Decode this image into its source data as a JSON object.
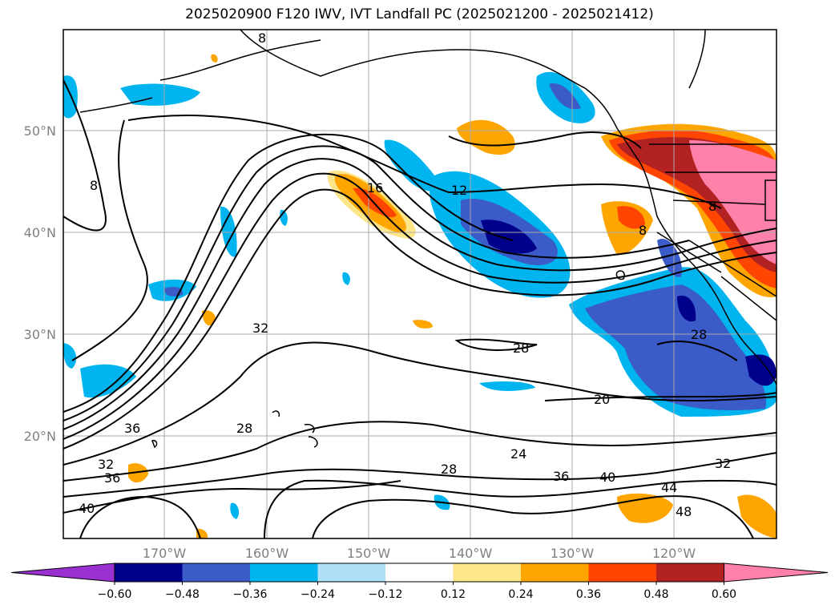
{
  "title": "2025020900 F120 IWV, IVT Landfall PC (2025021200 - 2025021412)",
  "map": {
    "lat_labels": [
      "50°N",
      "40°N",
      "30°N",
      "20°N"
    ],
    "lon_labels": [
      "170°W",
      "160°W",
      "150°W",
      "140°W",
      "130°W",
      "120°W"
    ]
  },
  "contour_labels": [
    "8",
    "8",
    "12",
    "16",
    "28",
    "28",
    "28",
    "32",
    "32",
    "32",
    "36",
    "36",
    "36",
    "40",
    "40",
    "44",
    "48",
    "24",
    "20",
    "28",
    "8",
    "8"
  ],
  "colorbar": {
    "ticks": [
      "−0.60",
      "−0.48",
      "−0.36",
      "−0.24",
      "−0.12",
      "0.12",
      "0.24",
      "0.36",
      "0.48",
      "0.60"
    ],
    "colors": [
      "#9b30d0",
      "#00008b",
      "#3a5bc8",
      "#00b4f0",
      "#b0e0f8",
      "#ffffff",
      "#fde68a",
      "#ffa500",
      "#ff4500",
      "#b22222",
      "#ff80a8"
    ]
  }
}
